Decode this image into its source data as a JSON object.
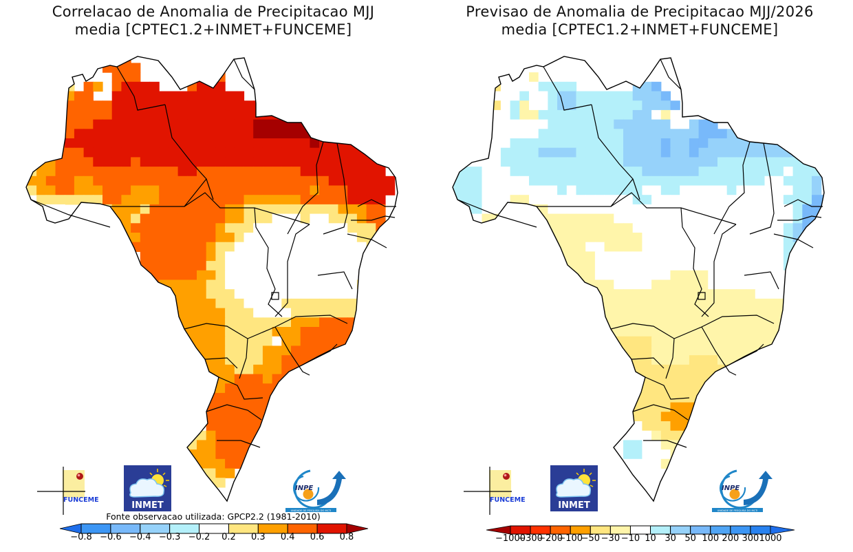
{
  "panels": [
    {
      "id": "correlation",
      "title_line1": "Correlacao de Anomalia de Precipitacao MJJ",
      "title_line2": "media [CPTEC1.2+INMET+FUNCEME]",
      "source_note": "Fonte observacao utilizada: GPCP2.2 (1981-2010)",
      "colorbar": {
        "labels": [
          "-0.8",
          "-0.6",
          "-0.4",
          "-0.3",
          "-0.2",
          "0.2",
          "0.3",
          "0.4",
          "0.6",
          "0.8"
        ],
        "colors": [
          "#1e6eeb",
          "#3c96f5",
          "#78b9fa",
          "#96d2fa",
          "#b4f0fa",
          "#ffffff",
          "#ffe680",
          "#ffa000",
          "#ff6400",
          "#e11400",
          "#a50000"
        ]
      },
      "legend_key": {
        "w": "#ffffff",
        "y": "#ffe680",
        "o": "#ffa000",
        "r": "#ff6400",
        "R": "#e11400",
        "D": "#a50000"
      },
      "grid": [
        "..........................................",
        "..........rrr.............................",
        "..........rrrr............................",
        "...........rrr......rrr...................",
        "......y.ro.rRRRR...rRRR...................",
        "....yyorr..RRRRRRRRRRRRRR.................",
        "....yorrrrrRRRRRRRRRRRRRRRRR..............",
        ".....rrrrrrRRRRRRRRRRRRRRRRRRRRRR.........",
        ".....rrrrRRRRRRRRRRRRRRRRRDDDDDDDDRRR......",
        ".....rrRRRRRRRRRRRRRRRRRRRDDDDDDDDRRRR.....",
        "...rrrRRRRRRRRRRRRRRRRRRRRRRRRRRDRRRRRRR...",
        "..yoorrrRRRRRRRRRRRRRRRRRRRRRRRRRRRRRRRR...",
        "..yoorrrrRRRRrRRRRRRRRRRRRRRRRRRRRRRRRRR...",
        ".wyoorrrrrrrrrrrrrRRrrrrrrrrrrrRRRRRRRRR...",
        ".woorrroorrrrrrrrrrrrrrrrrrrrrrrrrRRRRRRR..",
        "..yoorrooorrrooorrrrrrrrrrrrrrrrorrrRRRRR..",
        "...yyyyyyyrroooorrrrrrrrroooooorrrrrRRRR...",
        "....ww..yyyoooyrrrrrrrrooyyyyyyyyyyooorr...",
        ".........ooooyrrrrrrrrrooyyywwwywwyyyorr...",
        "..........ooorrrrrrrrroyyywwwwwwwwwwyyyr...",
        "..........yooorrrrrrrrooywwwwwwwwwwwwyyy...",
        "...........yrrrrrrrrroyywwwwwwwwwwwwwwyy...",
        "..............rrrrrrroywwwwwwwwwwwwwwwyy...",
        "..............rrrrrrryywwwwwwwwwwwwwwwyy...",
        "..............rrrrrrooywwwwwwwwwwwwwwwyy...",
        "...............roooooyywwwwwwwwwwwwwwyyy...",
        "................oooooyyywwwwwwwwwwwwwwyy...",
        "................ooooooyyywwwwyyyyyyyyyyy...",
        "................oooooooyyywwwwyyyyyyyyyy...",
        ".................ooooooyyyyyyyooorrrroyy...",
        ".................ooooooyyyyyooorrrrrrow....",
        ".................ooooooyyyyywoorrrrrrow....",
        "..................oooooyyyyooorrrrrrrow....",
        "..................oooooyyyyoorrrrrrrrro....",
        "...................oooooyyooorrrrrrroo.....",
        "...................ooooorrrorrrrrro........",
        "....................roorrrrrrrr............",
        "....................rrrrrrrrrr.............",
        "....................rrrrrrrrrr.............",
        ".....................rrrrrrrr..............",
        ".....................rrrrrrrr..............",
        "...................yyorrrrrr...............",
        "..................yyoorrrrr................",
        ".................yyooorrrr.................",
        "..................yoooorr..................",
        "...................yyyoo...................",
        "...................yyyy....................",
        "....................yy....................."
      ]
    },
    {
      "id": "forecast",
      "title_line1": "Previsao de Anomalia de Precipitacao MJJ/2026",
      "title_line2": "media [CPTEC1.2+INMET+FUNCEME]",
      "colorbar": {
        "labels": [
          "-1000",
          "-300",
          "-200",
          "-100",
          "-50",
          "-30",
          "-10",
          "10",
          "30",
          "50",
          "100",
          "200",
          "300",
          "1000"
        ],
        "colors": [
          "#a50000",
          "#e11400",
          "#ff3200",
          "#ff6400",
          "#ffa000",
          "#ffe680",
          "#fff5aa",
          "#ffffff",
          "#b4f0fa",
          "#96d2fa",
          "#78b9fa",
          "#50a5f5",
          "#3c96f5",
          "#2882f0",
          "#1e6eeb"
        ]
      },
      "legend_key": {
        "w": "#ffffff",
        "y": "#fff5aa",
        "Y": "#ffe680",
        "o": "#ffa000",
        "c": "#b4f0fa",
        "b": "#96d2fa",
        "B": "#78b9fa",
        "K": "#50a5f5"
      },
      "grid": [
        "..........................................",
        "..........yy..............................",
        "..........ww..............................",
        "..........yw........www...................",
        ".....oYw.wwcccc....wwbbB..................",
        "....oYwwwcwwcbbccccccbbbB.................",
        "....oYYwcywwcbbcccccccbbbB................",
        ".....ywwcyyccccccccccbbwyww...............",
        ".....wwwwwwwcccccccbbbbbbwwbBB............",
        ".....wwwwwwcccccccccbbbbbbbbBBBbbbb.......",
        ".....wwwccccccccccccbbbbBbbBBbbbbbbbbb....",
        "...wwwwccccbbbbcccccbbbbBbbBbbbbbbbbbbb...",
        "...wwwwcccccccccccccbbbbbbbbbbcccccccccc..",
        "..cccwwwccccccccccccccbbbbbbcccccccccwccc.",
        "..cccwwwwwcccccccccccccccccccccccccwwcccb.",
        "..cccwwwwwwwwcwcccccccwwccwwwwwcwwwwwwccb.",
        "..cccwwwyywwwwwwwwwwwccwwwwwwwwwwwwwwcccBB",
        "..cccwwwyyyywwwwwwwwwwwwwwwwwwwwwwwwwwcBBK",
        "...wwyyyyyyyyyyyyyywwwwwwwwwwwwwwwwwwwcBBK",
        "....wYYyyyyyyyyyyyyyywwwwwwwwwwwwwwwwcbBK.",
        ".........yyyyyyyyyyyyywwwwwwwwwwwwwwwcbB..",
        "..........yyyyyywwyyyywwwwwwwwwwwwwwwccc..",
        "..........yyyyyyywwwwwwwwwwwwwwwwwwwwccc..",
        "..........yyyyyyywwwwwwwwwwwwwwwwwwwwccc..",
        "...........yyyyyywwwwwwwwyyyywwwwwwwwwcc..",
        "............yyyyyyywwwwyyyyyywwwwwwwwwwy..",
        "................yyyyyyyyyyyyyyyyyywwwwyy..",
        "................yyyyyyyyyyyyyyyyyyyyyyyy..",
        "................yyyyyyyyyyyyyyyyyyyyyyy...",
        ".................yyyyyyyyyyyyyyyyyyyyyy...",
        ".................yyyyyyyyyyyyyyyyyyyyyy...",
        ".................YYYYYYyyyyyyyyyyyyyyy....",
        ".................YYYYYYyyyyyyyyyyyyyy.....",
        "..................YYYYYyyyyYYYyyyyy.......",
        "...................YYYYYYYYYYYYYYy........",
        "...................YYYYYYYYYYYYY..........",
        "....................YYYYYYYYYY............",
        "....................YYYYYYYYYY............",
        ".....................YYYYooooY............",
        ".....................YYYooooYY............",
        "...................wwwYYYooooY............",
        "..................wwwwwyYYYYY.............",
        ".................wwwccwwyyyy..............",
        "..................wwccwwwyy...............",
        "...................wwwwwy.................",
        "...................wwwww..................",
        "....................www...................",
        "...................ww....................."
      ]
    }
  ],
  "logos": {
    "funceme": "FUNCEME",
    "inmet": "INMET",
    "inpe": "INPE",
    "inpe_subtitle": "UNIDADE DE PESQUISA DO MCTI"
  }
}
